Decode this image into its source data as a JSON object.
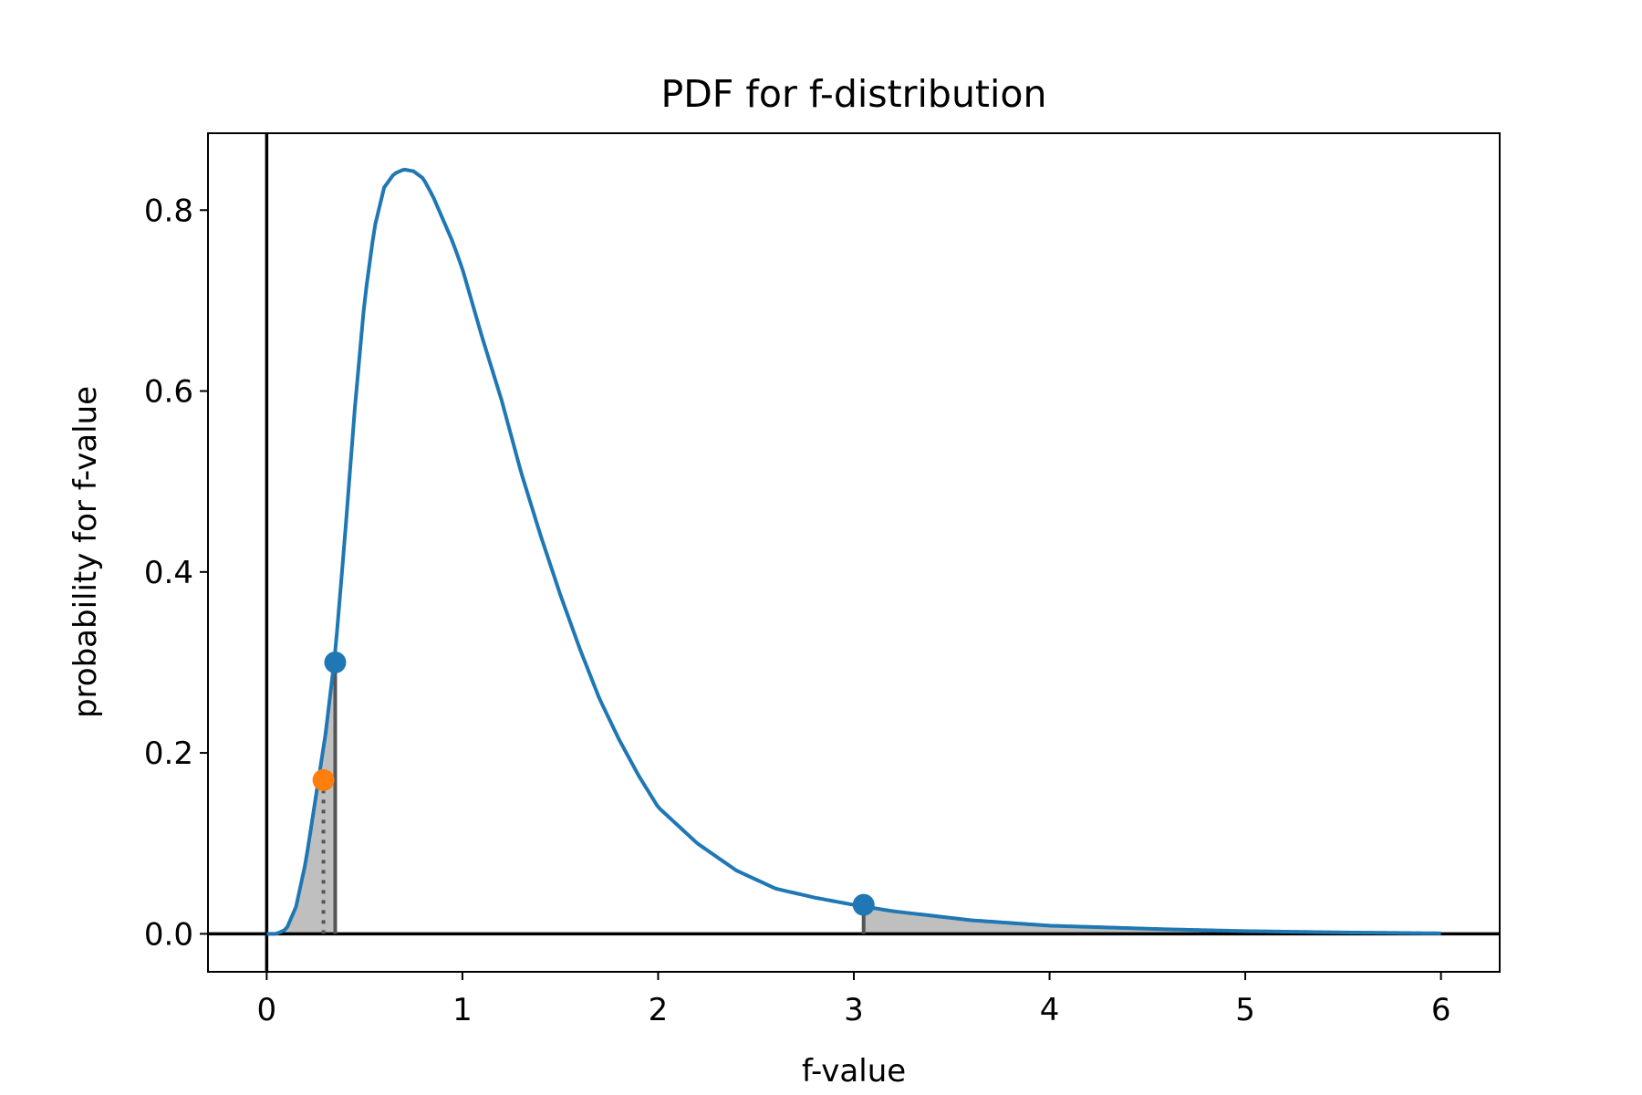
{
  "chart_data": {
    "type": "line",
    "title": "PDF for f-distribution",
    "xlabel": "f-value",
    "ylabel": "probability for f-value",
    "xlim": [
      -0.3,
      6.3
    ],
    "ylim": [
      -0.042,
      0.885
    ],
    "x_ticks": [
      "0",
      "1",
      "2",
      "3",
      "4",
      "5",
      "6"
    ],
    "y_ticks": [
      "0.0",
      "0.2",
      "0.4",
      "0.6",
      "0.8"
    ],
    "grid": false,
    "series": [
      {
        "color": "#1f77b4",
        "x": [
          0,
          0.05,
          0.1,
          0.15,
          0.2,
          0.25,
          0.3,
          0.35,
          0.4,
          0.45,
          0.5,
          0.55,
          0.6,
          0.65,
          0.7,
          0.75,
          0.8,
          0.85,
          0.9,
          0.95,
          1.0,
          1.1,
          1.2,
          1.3,
          1.4,
          1.5,
          1.6,
          1.7,
          1.8,
          1.9,
          2.0,
          2.2,
          2.4,
          2.6,
          2.8,
          3.0,
          3.2,
          3.4,
          3.6,
          3.8,
          4.0,
          4.3,
          4.6,
          5.0,
          5.5,
          6.0
        ],
        "y": [
          0.0,
          0.0,
          0.005,
          0.03,
          0.08,
          0.15,
          0.22,
          0.31,
          0.44,
          0.58,
          0.7,
          0.78,
          0.825,
          0.84,
          0.845,
          0.843,
          0.835,
          0.815,
          0.79,
          0.765,
          0.735,
          0.66,
          0.59,
          0.51,
          0.44,
          0.375,
          0.315,
          0.26,
          0.215,
          0.175,
          0.14,
          0.1,
          0.07,
          0.05,
          0.04,
          0.032,
          0.025,
          0.02,
          0.015,
          0.012,
          0.009,
          0.007,
          0.005,
          0.003,
          0.0015,
          0.0005
        ]
      }
    ],
    "shaded_regions": [
      {
        "x_from": 0,
        "x_to": 0.35,
        "color": "#bfbfbf"
      },
      {
        "x_from": 3.05,
        "x_to": 6.0,
        "color": "#bfbfbf"
      }
    ],
    "critical_lines": [
      {
        "x": 0.35,
        "y": 0.3,
        "color": "#555555",
        "style": "solid"
      },
      {
        "x": 3.05,
        "y": 0.032,
        "color": "#555555",
        "style": "solid"
      },
      {
        "x": 0.29,
        "y": 0.17,
        "color": "#555555",
        "style": "dotted"
      }
    ],
    "points": [
      {
        "x": 0.35,
        "y": 0.3,
        "color": "#1f77b4"
      },
      {
        "x": 3.05,
        "y": 0.032,
        "color": "#1f77b4"
      },
      {
        "x": 0.29,
        "y": 0.17,
        "color": "#ff7f0e"
      }
    ],
    "reference_lines": [
      {
        "orientation": "horizontal",
        "value": 0,
        "color": "#000000"
      },
      {
        "orientation": "vertical",
        "value": 0,
        "color": "#000000"
      }
    ]
  }
}
